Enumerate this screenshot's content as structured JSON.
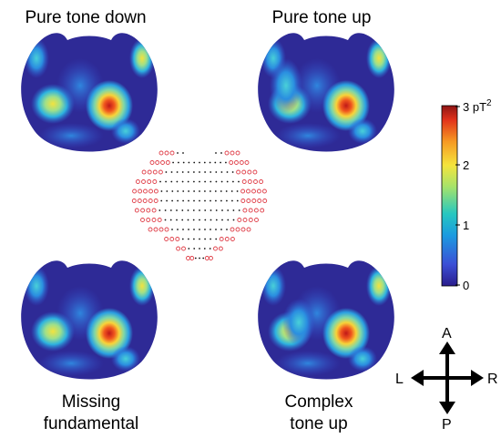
{
  "labels": {
    "top_left": "Pure tone down",
    "top_right": "Pure tone up",
    "bottom_left": [
      "Missing",
      "fundamental"
    ],
    "bottom_right": [
      "Complex",
      "tone up"
    ]
  },
  "colorbar": {
    "ticks": [
      "0",
      "1",
      "2",
      "3 pT"
    ],
    "unit_superscript": "2",
    "colors": [
      "#2a1d8c",
      "#3b4fd6",
      "#1b9ae0",
      "#27c7c0",
      "#a6e36a",
      "#f5e43c",
      "#f69a23",
      "#e2331b",
      "#8e1414"
    ]
  },
  "orientation": {
    "anterior": "A",
    "posterior": "P",
    "left": "L",
    "right": "R"
  },
  "colors": {
    "map_background": "#2e2a96",
    "sensor_ring": "#e0404a",
    "sensor_dot": "#111111"
  }
}
